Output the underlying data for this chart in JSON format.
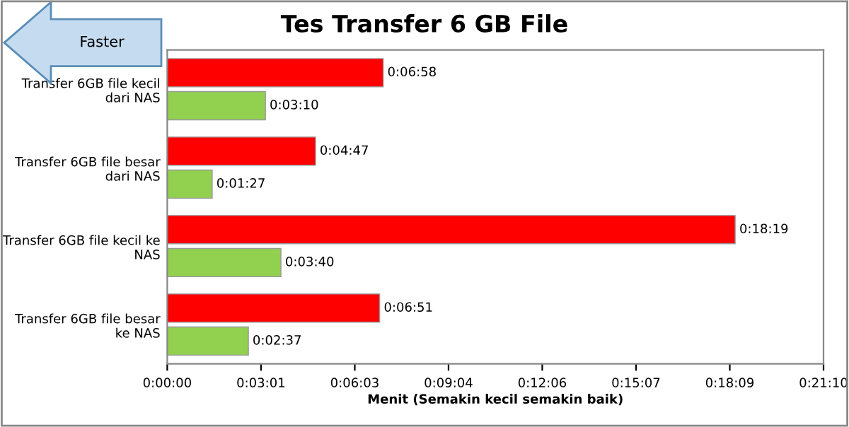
{
  "chart_data": {
    "type": "bar",
    "orientation": "horizontal",
    "title": "Tes Transfer 6 GB File",
    "xlabel": "Menit (Semakin kecil semakin baik)",
    "categories": [
      "Transfer 6GB file kecil dari NAS",
      "Transfer 6GB file besar dari NAS",
      "Transfer 6GB file kecil ke NAS",
      "Transfer 6GB file besar ke NAS"
    ],
    "series": [
      {
        "color": "#ff0000",
        "values": [
          418,
          287,
          1099,
          411
        ],
        "value_labels": [
          "0:06:58",
          "0:04:47",
          "0:18:19",
          "0:06:51"
        ]
      },
      {
        "color": "#92d050",
        "values": [
          190,
          87,
          220,
          157
        ],
        "value_labels": [
          "0:03:10",
          "0:01:27",
          "0:03:40",
          "0:02:37"
        ]
      }
    ],
    "xlim": [
      0,
      1270
    ],
    "xticks": [
      {
        "value": 0,
        "label": "0:00:00"
      },
      {
        "value": 181.4,
        "label": "0:03:01"
      },
      {
        "value": 362.9,
        "label": "0:06:03"
      },
      {
        "value": 544.3,
        "label": "0:09:04"
      },
      {
        "value": 725.7,
        "label": "0:12:06"
      },
      {
        "value": 907.1,
        "label": "0:15:07"
      },
      {
        "value": 1088.6,
        "label": "0:18:09"
      },
      {
        "value": 1270,
        "label": "0:21:10"
      }
    ],
    "grid": false,
    "legend": false,
    "annotations": [
      "Faster"
    ]
  }
}
